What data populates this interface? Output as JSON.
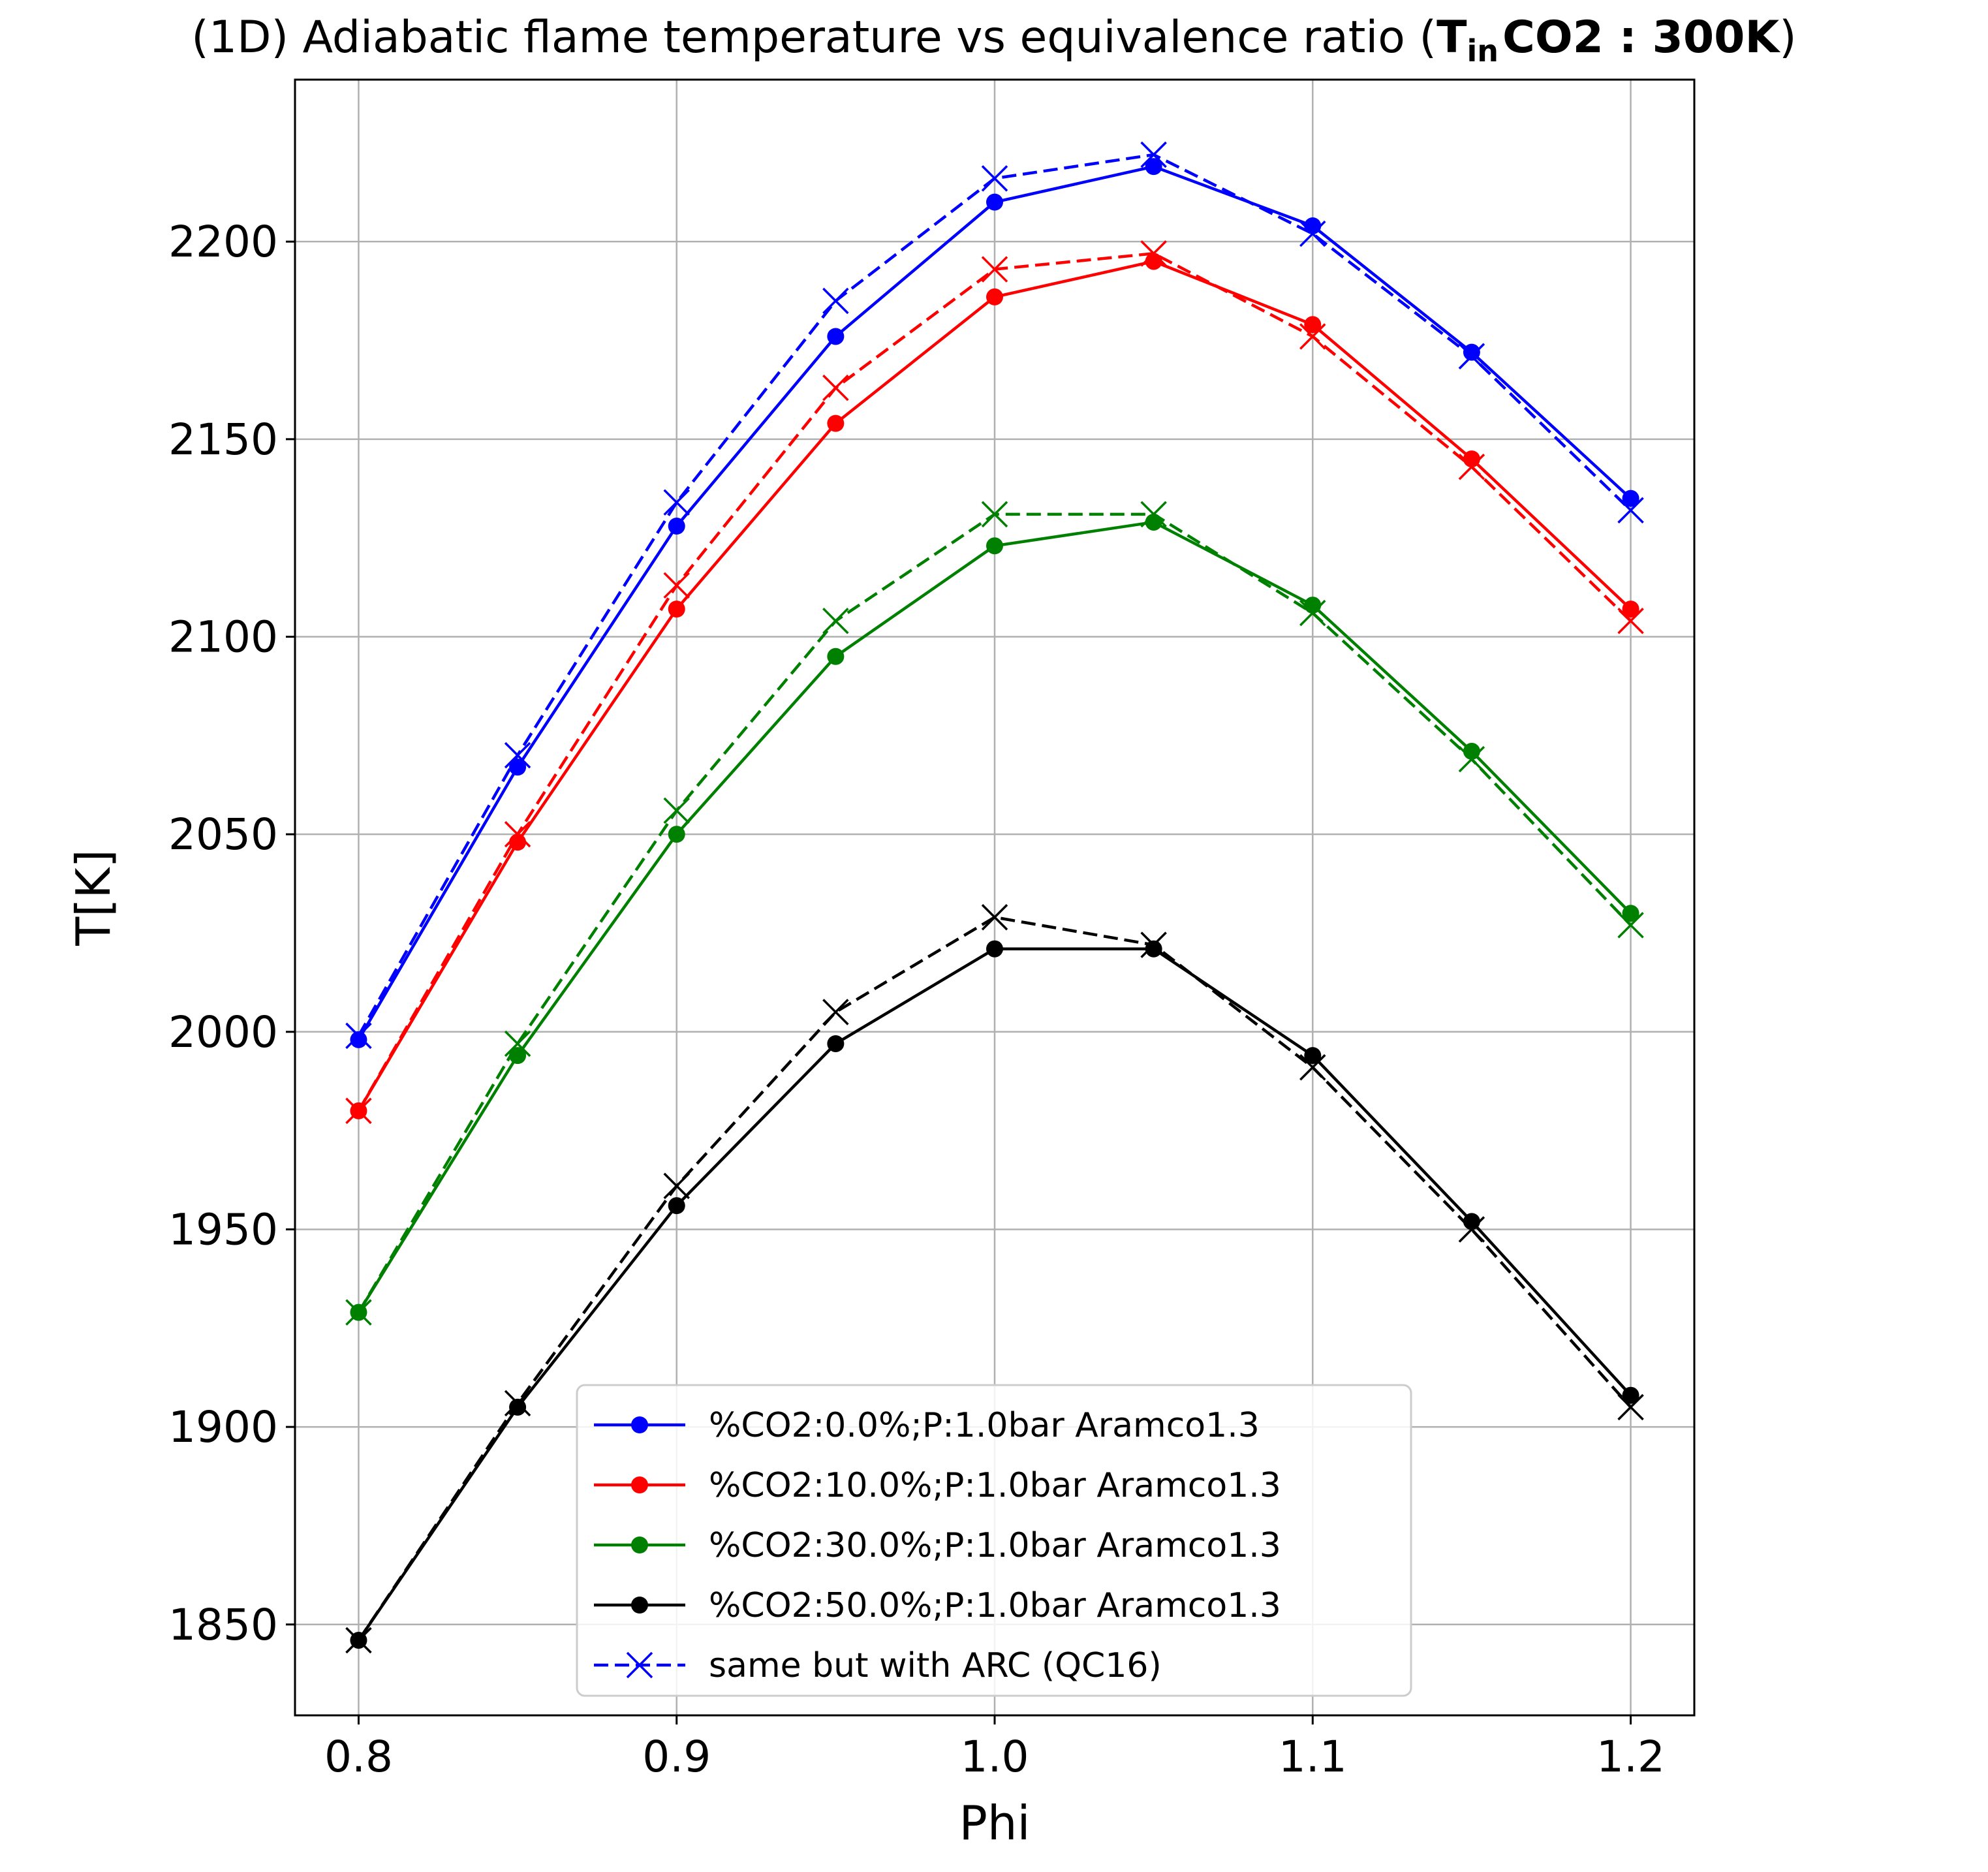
{
  "chart_data": {
    "type": "line",
    "title_prefix": "(1D) Adiabatic flame temperature vs equivalence ratio (",
    "title_math_T": "T",
    "title_math_sub": "in",
    "title_math_rest": "CO2 : 300K",
    "title_suffix": ")",
    "xlabel": "Phi",
    "ylabel": "T[K]",
    "xlim": [
      0.78,
      1.22
    ],
    "ylim": [
      1827,
      2241
    ],
    "xticks": [
      0.8,
      0.9,
      1.0,
      1.1,
      1.2
    ],
    "xtick_labels": [
      "0.8",
      "0.9",
      "1.0",
      "1.1",
      "1.2"
    ],
    "yticks": [
      1850,
      1900,
      1950,
      2000,
      2050,
      2100,
      2150,
      2200
    ],
    "ytick_labels": [
      "1850",
      "1900",
      "1950",
      "2000",
      "2050",
      "2100",
      "2150",
      "2200"
    ],
    "grid": true,
    "legend_position": "lower center",
    "x": [
      0.8,
      0.85,
      0.9,
      0.95,
      1.0,
      1.05,
      1.1,
      1.15,
      1.2
    ],
    "series": [
      {
        "name": "%CO2:0.0%;P:1.0bar Aramco1.3",
        "color": "#0000ff",
        "style": "solid",
        "marker": "dot",
        "values": [
          1998,
          2067,
          2128,
          2176,
          2210,
          2219,
          2204,
          2172,
          2135
        ]
      },
      {
        "name": "%CO2:10.0%;P:1.0bar Aramco1.3",
        "color": "#ff0000",
        "style": "solid",
        "marker": "dot",
        "values": [
          1980,
          2048,
          2107,
          2154,
          2186,
          2195,
          2179,
          2145,
          2107
        ]
      },
      {
        "name": "%CO2:30.0%;P:1.0bar Aramco1.3",
        "color": "#008000",
        "style": "solid",
        "marker": "dot",
        "values": [
          1929,
          1994,
          2050,
          2095,
          2123,
          2129,
          2108,
          2071,
          2030
        ]
      },
      {
        "name": "%CO2:50.0%;P:1.0bar Aramco1.3",
        "color": "#000000",
        "style": "solid",
        "marker": "dot",
        "values": [
          1846,
          1905,
          1956,
          1997,
          2021,
          2021,
          1994,
          1952,
          1908
        ]
      },
      {
        "color": "#0000ff",
        "style": "dashed",
        "marker": "x",
        "values": [
          1999,
          2070,
          2134,
          2185,
          2216,
          2222,
          2202,
          2171,
          2132
        ]
      },
      {
        "color": "#ff0000",
        "style": "dashed",
        "marker": "x",
        "values": [
          1980,
          2050,
          2113,
          2163,
          2193,
          2197,
          2176,
          2143,
          2104
        ]
      },
      {
        "color": "#008000",
        "style": "dashed",
        "marker": "x",
        "values": [
          1929,
          1997,
          2056,
          2104,
          2131,
          2131,
          2106,
          2069,
          2027
        ]
      },
      {
        "color": "#000000",
        "style": "dashed",
        "marker": "x",
        "values": [
          1846,
          1906,
          1961,
          2005,
          2029,
          2022,
          1991,
          1950,
          1905
        ]
      }
    ],
    "legend": [
      {
        "label": "%CO2:0.0%;P:1.0bar Aramco1.3",
        "color": "#0000ff",
        "style": "solid",
        "marker": "dot"
      },
      {
        "label": "%CO2:10.0%;P:1.0bar Aramco1.3",
        "color": "#ff0000",
        "style": "solid",
        "marker": "dot"
      },
      {
        "label": "%CO2:30.0%;P:1.0bar Aramco1.3",
        "color": "#008000",
        "style": "solid",
        "marker": "dot"
      },
      {
        "label": "%CO2:50.0%;P:1.0bar Aramco1.3",
        "color": "#000000",
        "style": "solid",
        "marker": "dot"
      },
      {
        "label": "same but with ARC (QC16)",
        "color": "#0000ff",
        "style": "dashed",
        "marker": "x"
      }
    ]
  }
}
